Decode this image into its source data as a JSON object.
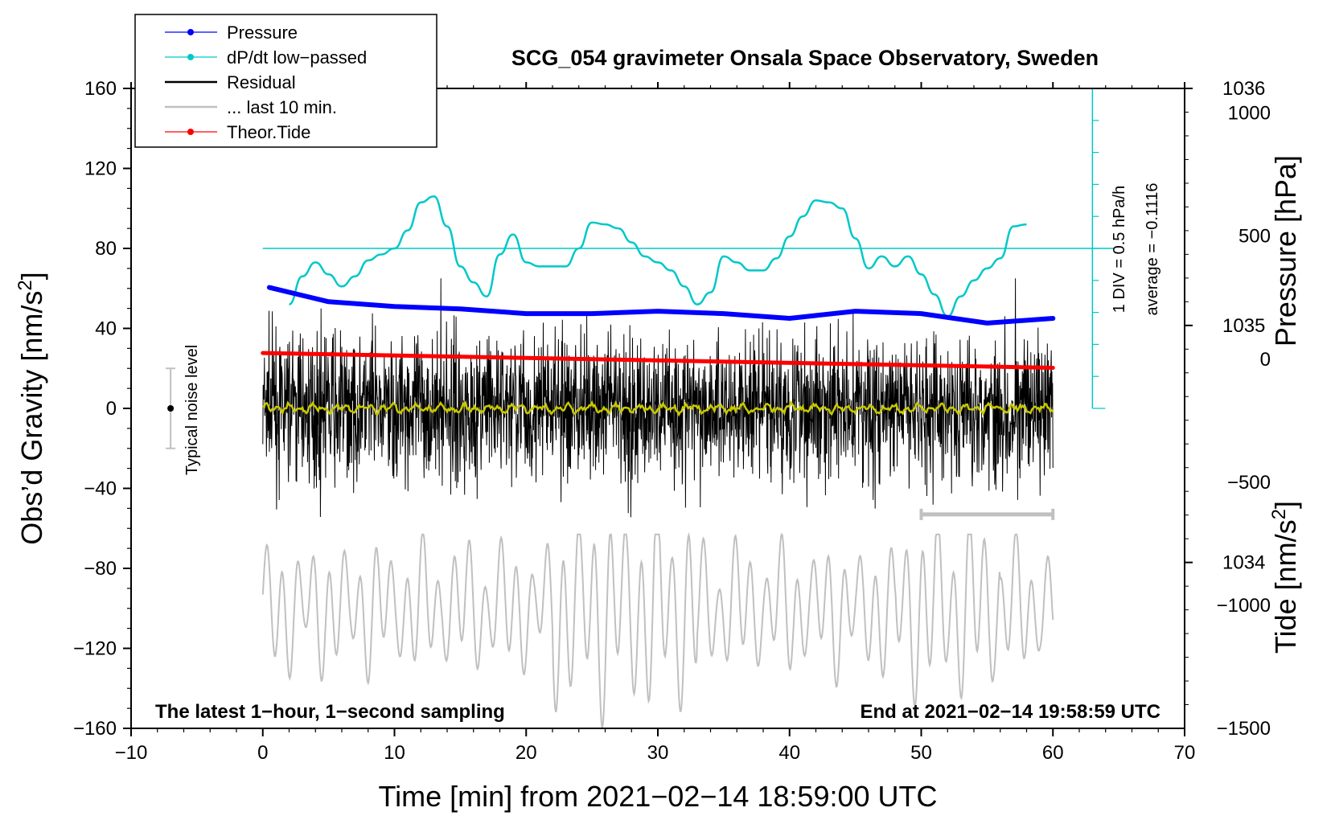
{
  "chart_data": {
    "type": "line",
    "title": "SCG_054 gravimeter Onsala Space Observatory, Sweden",
    "xlabel": "Time [min] from 2021−02−14 18:59:00 UTC",
    "ylabel": "Obs’d Gravity [nm/s",
    "ylabel_sup": "2",
    "ylabel_close": "]",
    "y2label": "Pressure [hPa]",
    "y3label": "Tide [nm/s",
    "y3label_sup": "2",
    "y3label_close": "]",
    "xlim": [
      -10,
      70
    ],
    "ylim": [
      -160,
      160
    ],
    "pressure_lim": [
      1033.3,
      1036.0
    ],
    "tide_lim": [
      -1500,
      1100
    ],
    "x_ticks": [
      -10,
      0,
      10,
      20,
      30,
      40,
      50,
      60,
      70
    ],
    "x_tick_labels": [
      "−10",
      "0",
      "10",
      "20",
      "30",
      "40",
      "50",
      "60",
      "70"
    ],
    "y_ticks": [
      -160,
      -120,
      -80,
      -40,
      0,
      40,
      80,
      120,
      160
    ],
    "y_tick_labels": [
      "−160",
      "−120",
      "−80",
      "−40",
      "0",
      "40",
      "80",
      "120",
      "160"
    ],
    "pressure_ticks": [
      1034,
      1035,
      1036
    ],
    "pressure_tick_labels": [
      "1034",
      "1035",
      "1036"
    ],
    "tide_ticks": [
      -1500,
      -1000,
      -500,
      0,
      500,
      1000
    ],
    "tide_tick_labels": [
      "−1500",
      "−1000",
      "−500",
      "0",
      "500",
      "1000"
    ],
    "annotation_left": "The latest 1−hour, 1−second sampling",
    "annotation_right": "End at 2021−02−14 19:58:59 UTC",
    "noise_label": "Typical noise level",
    "noise_level": {
      "x": -7,
      "center": 0,
      "range": [
        -20,
        20
      ]
    },
    "dpdt_scale_label": "1 DIV = 0.5 hPa/h",
    "dpdt_average_label": "average = −0.1116",
    "dpdt_reference_level": 80,
    "dpdt_axis_x": 63,
    "dpdt_axis_range": [
      0,
      160
    ],
    "last10_bar": {
      "x_start": 50,
      "x_end": 60,
      "y": -53
    },
    "legend": [
      {
        "label": "Pressure",
        "color": "#0000ff",
        "style": "line-dot"
      },
      {
        "label": "dP/dt low−passed",
        "color": "#00c8c8",
        "style": "line-dot"
      },
      {
        "label": "Residual",
        "color": "#000000",
        "style": "line"
      },
      {
        "label": "... last 10 min.",
        "color": "#c0c0c0",
        "style": "line"
      },
      {
        "label": "Theor.Tide",
        "color": "#ff0000",
        "style": "line-dot"
      }
    ],
    "series": [
      {
        "name": "Pressure",
        "axis": "pressure",
        "color": "#0000ff",
        "x": [
          0.5,
          5,
          10,
          15,
          20,
          25,
          30,
          35,
          40,
          45,
          50,
          55,
          60
        ],
        "y": [
          1035.16,
          1035.1,
          1035.08,
          1035.07,
          1035.05,
          1035.05,
          1035.06,
          1035.05,
          1035.03,
          1035.06,
          1035.05,
          1035.01,
          1035.03
        ]
      },
      {
        "name": "dP/dt low−passed",
        "axis": "gravity",
        "color": "#00c8c8",
        "x": [
          2,
          3,
          4,
          5,
          6,
          7,
          8,
          9,
          10,
          11,
          12,
          13,
          14,
          15,
          16,
          17,
          18,
          19,
          20,
          21,
          22,
          23,
          24,
          25,
          26,
          27,
          28,
          29,
          30,
          31,
          32,
          33,
          34,
          35,
          36,
          37,
          38,
          39,
          40,
          41,
          42,
          43,
          44,
          45,
          46,
          47,
          48,
          49,
          50,
          51,
          52,
          53,
          54,
          55,
          56,
          57,
          58
        ],
        "y": [
          52,
          66,
          73,
          67,
          61,
          66,
          74,
          77,
          80,
          89,
          103,
          106,
          91,
          71,
          63,
          56,
          77,
          87,
          73,
          71,
          71,
          71,
          80,
          93,
          92,
          90,
          83,
          76,
          73,
          69,
          61,
          52,
          58,
          76,
          73,
          69,
          69,
          75,
          86,
          96,
          104,
          103,
          100,
          85,
          70,
          76,
          71,
          76,
          67,
          57,
          46,
          56,
          64,
          70,
          75,
          91,
          92
        ]
      },
      {
        "name": "Residual",
        "axis": "gravity",
        "color": "#000000",
        "x": [
          0,
          60
        ],
        "amplitude": 33,
        "range": [
          -65,
          65
        ]
      },
      {
        "name": "Residual smoothed",
        "axis": "gravity",
        "color": "#c8c800",
        "x": [
          0,
          60
        ],
        "y": [
          0,
          0
        ]
      },
      {
        "name": "... last 10 min.",
        "axis": "gravity",
        "color": "#c0c0c0",
        "x": [
          0,
          60
        ],
        "amplitude": 40,
        "offset": -100,
        "range": [
          -160,
          -63
        ]
      },
      {
        "name": "Theor.Tide",
        "axis": "tide",
        "color": "#ff0000",
        "x": [
          0,
          60
        ],
        "y": [
          25,
          -35
        ]
      }
    ]
  }
}
